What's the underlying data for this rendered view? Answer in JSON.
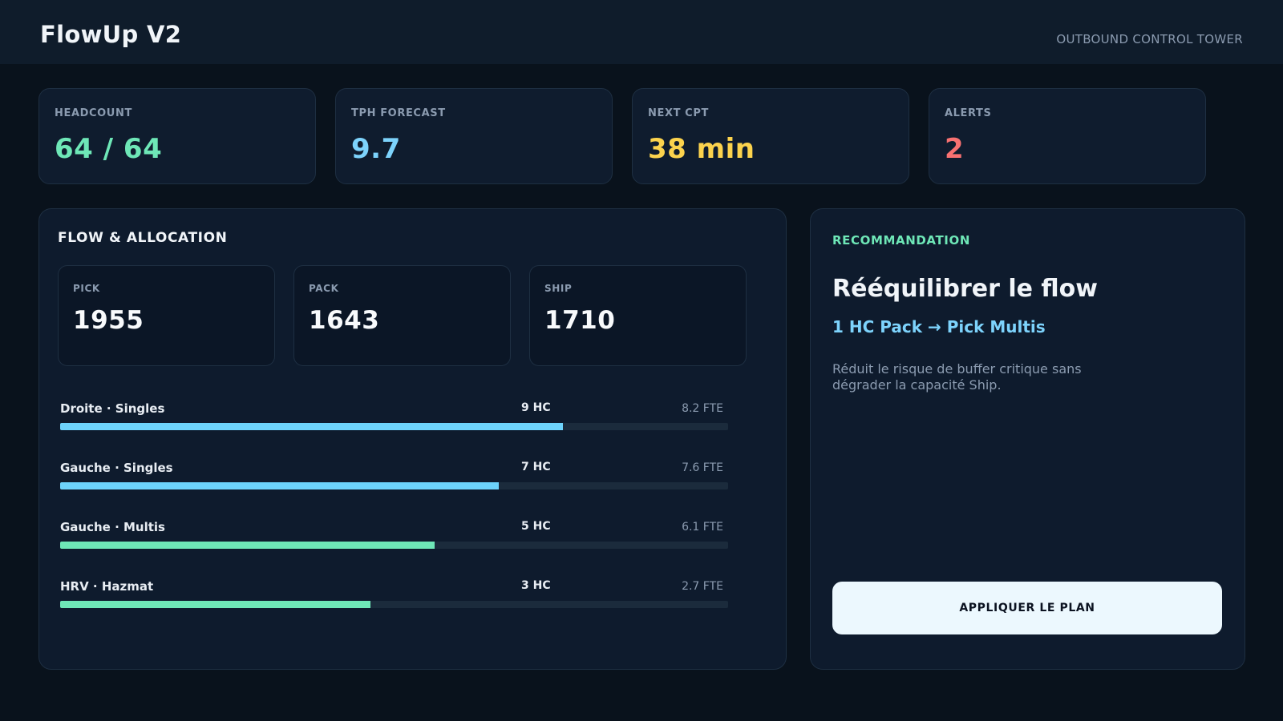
{
  "header": {
    "title": "FlowUp V2",
    "subtitle": "OUTBOUND CONTROL TOWER"
  },
  "kpis": [
    {
      "label": "HEADCOUNT",
      "value": "64 / 64",
      "color": "#6ee7b7"
    },
    {
      "label": "TPH FORECAST",
      "value": "9.7",
      "color": "#7dd3fc"
    },
    {
      "label": "NEXT CPT",
      "value": "38 min",
      "color": "#fcd34d"
    },
    {
      "label": "ALERTS",
      "value": "2",
      "color": "#f87171"
    }
  ],
  "flow": {
    "title": "FLOW & ALLOCATION",
    "stages": [
      {
        "label": "PICK",
        "value": "1955"
      },
      {
        "label": "PACK",
        "value": "1643"
      },
      {
        "label": "SHIP",
        "value": "1710"
      }
    ],
    "lanes": [
      {
        "name": "Droite · Singles",
        "hc": "9 HC",
        "fte": "8.2 FTE",
        "fill": 0.753,
        "color": "#6dd3fb"
      },
      {
        "name": "Gauche · Singles",
        "hc": "7 HC",
        "fte": "7.6 FTE",
        "fill": 0.657,
        "color": "#6dd3fb"
      },
      {
        "name": "Gauche · Multis",
        "hc": "5 HC",
        "fte": "6.1 FTE",
        "fill": 0.561,
        "color": "#6ee7b7"
      },
      {
        "name": "HRV · Hazmat",
        "hc": "3 HC",
        "fte": "2.7 FTE",
        "fill": 0.464,
        "color": "#6ee7b7"
      }
    ]
  },
  "recommendation": {
    "label": "RECOMMANDATION",
    "title": "Rééquilibrer le flow",
    "action": "1 HC Pack → Pick Multis",
    "description": "Réduit le risque de buffer critique sans dégrader la capacité Ship.",
    "button_label": "APPLIQUER LE PLAN"
  }
}
